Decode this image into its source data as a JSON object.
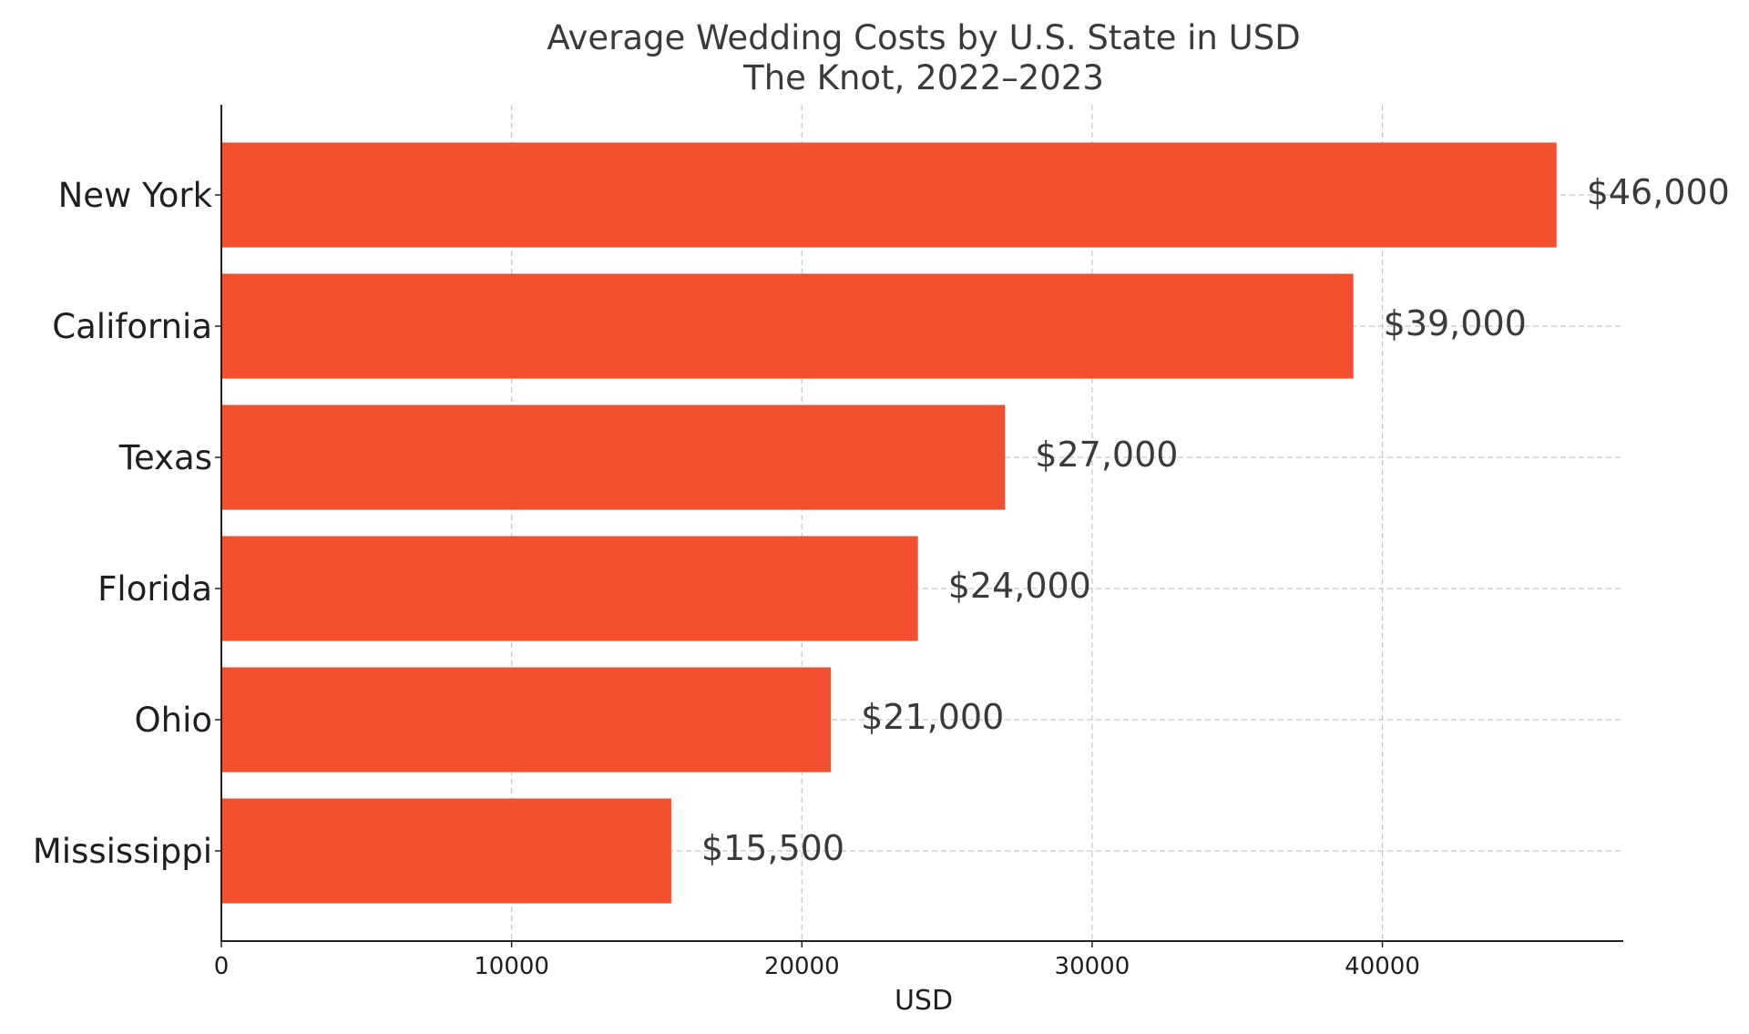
{
  "chart_data": {
    "type": "bar",
    "orientation": "horizontal",
    "title": "Average Wedding Costs by U.S. State in USD",
    "subtitle": "The Knot, 2022–2023",
    "xlabel": "USD",
    "ylabel": "",
    "xlim": [
      0,
      48300
    ],
    "xticks": [
      0,
      10000,
      20000,
      30000,
      40000
    ],
    "xtick_labels": [
      "0",
      "10000",
      "20000",
      "30000",
      "40000"
    ],
    "grid": true,
    "bar_color": "#f24f2f",
    "categories": [
      "New York",
      "California",
      "Texas",
      "Florida",
      "Ohio",
      "Mississippi"
    ],
    "values": [
      46000,
      39000,
      27000,
      24000,
      21000,
      15500
    ],
    "value_labels": [
      "$46,000",
      "$39,000",
      "$27,000",
      "$24,000",
      "$21,000",
      "$15,500"
    ]
  }
}
